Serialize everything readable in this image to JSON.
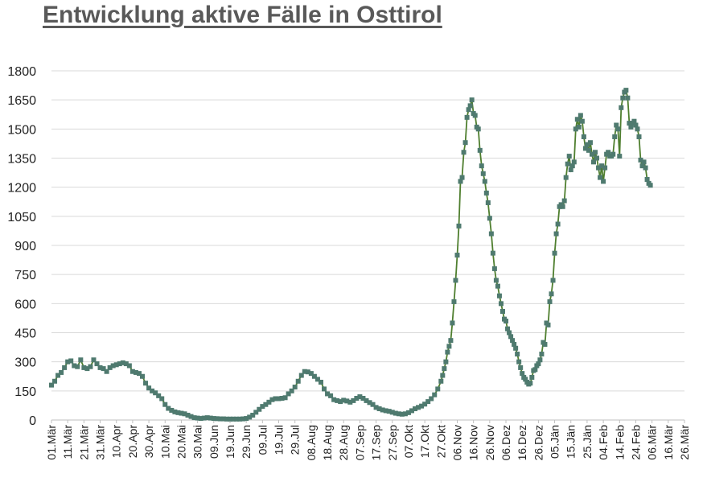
{
  "chart_data": {
    "type": "line",
    "title": "Entwicklung aktive Fälle in Osttirol",
    "xlabel": "",
    "ylabel": "",
    "ylim": [
      0,
      1800
    ],
    "yticks": [
      0,
      150,
      300,
      450,
      600,
      750,
      900,
      1050,
      1200,
      1350,
      1500,
      1650,
      1800
    ],
    "grid": true,
    "legend": "none",
    "line_color": "#4f7f2f",
    "marker_color": "#4f7a6f",
    "x_tick_labels": [
      "01.Mär",
      "11.Mär",
      "21.Mär",
      "31.Mär",
      "10.Apr",
      "20.Apr",
      "30.Apr",
      "10.Mai",
      "20.Mai",
      "30.Mai",
      "09.Jun",
      "19.Jun",
      "29.Jun",
      "09.Jul",
      "19.Jul",
      "29.Jul",
      "08.Aug",
      "18.Aug",
      "28.Aug",
      "07.Sep",
      "17.Sep",
      "27.Sep",
      "07.Okt",
      "17.Okt",
      "27.Okt",
      "06.Nov",
      "16.Nov",
      "26.Nov",
      "06.Dez",
      "16.Dez",
      "26.Dez",
      "05.Jän",
      "15.Jän",
      "25.Jän",
      "04.Feb",
      "14.Feb",
      "24.Feb",
      "06.Mär",
      "16.Mär",
      "26.Mär"
    ],
    "series": [
      {
        "name": "",
        "points": [
          [
            0,
            180
          ],
          [
            2,
            200
          ],
          [
            4,
            230
          ],
          [
            6,
            245
          ],
          [
            8,
            270
          ],
          [
            10,
            300
          ],
          [
            12,
            305
          ],
          [
            14,
            280
          ],
          [
            16,
            275
          ],
          [
            18,
            310
          ],
          [
            20,
            270
          ],
          [
            22,
            265
          ],
          [
            24,
            275
          ],
          [
            26,
            310
          ],
          [
            28,
            290
          ],
          [
            30,
            270
          ],
          [
            32,
            265
          ],
          [
            34,
            250
          ],
          [
            36,
            270
          ],
          [
            38,
            280
          ],
          [
            40,
            285
          ],
          [
            42,
            290
          ],
          [
            44,
            295
          ],
          [
            46,
            290
          ],
          [
            48,
            280
          ],
          [
            50,
            250
          ],
          [
            52,
            245
          ],
          [
            54,
            240
          ],
          [
            56,
            225
          ],
          [
            58,
            190
          ],
          [
            60,
            165
          ],
          [
            62,
            150
          ],
          [
            64,
            140
          ],
          [
            66,
            125
          ],
          [
            68,
            110
          ],
          [
            70,
            80
          ],
          [
            72,
            60
          ],
          [
            74,
            50
          ],
          [
            76,
            42
          ],
          [
            78,
            38
          ],
          [
            80,
            35
          ],
          [
            82,
            32
          ],
          [
            84,
            25
          ],
          [
            86,
            18
          ],
          [
            88,
            12
          ],
          [
            90,
            10
          ],
          [
            92,
            8
          ],
          [
            94,
            10
          ],
          [
            96,
            12
          ],
          [
            98,
            10
          ],
          [
            100,
            8
          ],
          [
            102,
            7
          ],
          [
            104,
            6
          ],
          [
            106,
            6
          ],
          [
            108,
            5
          ],
          [
            110,
            5
          ],
          [
            112,
            5
          ],
          [
            114,
            5
          ],
          [
            116,
            5
          ],
          [
            118,
            6
          ],
          [
            120,
            8
          ],
          [
            122,
            15
          ],
          [
            124,
            25
          ],
          [
            126,
            40
          ],
          [
            128,
            55
          ],
          [
            130,
            70
          ],
          [
            132,
            80
          ],
          [
            134,
            92
          ],
          [
            136,
            105
          ],
          [
            138,
            110
          ],
          [
            140,
            110
          ],
          [
            142,
            112
          ],
          [
            144,
            115
          ],
          [
            146,
            135
          ],
          [
            148,
            150
          ],
          [
            150,
            170
          ],
          [
            152,
            200
          ],
          [
            154,
            230
          ],
          [
            156,
            250
          ],
          [
            158,
            248
          ],
          [
            160,
            240
          ],
          [
            162,
            225
          ],
          [
            164,
            210
          ],
          [
            166,
            195
          ],
          [
            168,
            160
          ],
          [
            170,
            135
          ],
          [
            172,
            125
          ],
          [
            174,
            105
          ],
          [
            176,
            100
          ],
          [
            178,
            95
          ],
          [
            180,
            102
          ],
          [
            182,
            98
          ],
          [
            184,
            92
          ],
          [
            186,
            100
          ],
          [
            188,
            112
          ],
          [
            190,
            120
          ],
          [
            192,
            112
          ],
          [
            194,
            100
          ],
          [
            196,
            90
          ],
          [
            198,
            80
          ],
          [
            200,
            65
          ],
          [
            202,
            58
          ],
          [
            204,
            52
          ],
          [
            206,
            48
          ],
          [
            208,
            45
          ],
          [
            210,
            40
          ],
          [
            212,
            35
          ],
          [
            214,
            32
          ],
          [
            216,
            30
          ],
          [
            218,
            32
          ],
          [
            220,
            38
          ],
          [
            222,
            48
          ],
          [
            224,
            58
          ],
          [
            226,
            65
          ],
          [
            228,
            72
          ],
          [
            230,
            82
          ],
          [
            232,
            95
          ],
          [
            234,
            110
          ],
          [
            236,
            130
          ],
          [
            238,
            160
          ],
          [
            240,
            200
          ],
          [
            241,
            230
          ],
          [
            242,
            265
          ],
          [
            243,
            300
          ],
          [
            244,
            350
          ],
          [
            245,
            380
          ],
          [
            246,
            410
          ],
          [
            247,
            500
          ],
          [
            248,
            610
          ],
          [
            249,
            720
          ],
          [
            250,
            850
          ],
          [
            251,
            1000
          ],
          [
            252,
            1230
          ],
          [
            253,
            1250
          ],
          [
            254,
            1380
          ],
          [
            255,
            1430
          ],
          [
            256,
            1560
          ],
          [
            257,
            1600
          ],
          [
            258,
            1620
          ],
          [
            259,
            1650
          ],
          [
            260,
            1580
          ],
          [
            261,
            1570
          ],
          [
            262,
            1510
          ],
          [
            263,
            1500
          ],
          [
            264,
            1390
          ],
          [
            265,
            1310
          ],
          [
            266,
            1270
          ],
          [
            267,
            1230
          ],
          [
            268,
            1170
          ],
          [
            269,
            1120
          ],
          [
            270,
            1040
          ],
          [
            271,
            960
          ],
          [
            272,
            860
          ],
          [
            273,
            780
          ],
          [
            274,
            720
          ],
          [
            275,
            690
          ],
          [
            276,
            640
          ],
          [
            277,
            600
          ],
          [
            278,
            560
          ],
          [
            279,
            520
          ],
          [
            280,
            510
          ],
          [
            281,
            470
          ],
          [
            282,
            450
          ],
          [
            283,
            430
          ],
          [
            284,
            410
          ],
          [
            285,
            390
          ],
          [
            286,
            370
          ],
          [
            287,
            340
          ],
          [
            288,
            300
          ],
          [
            289,
            270
          ],
          [
            290,
            240
          ],
          [
            291,
            220
          ],
          [
            292,
            210
          ],
          [
            293,
            195
          ],
          [
            294,
            185
          ],
          [
            295,
            190
          ],
          [
            296,
            220
          ],
          [
            297,
            255
          ],
          [
            298,
            260
          ],
          [
            299,
            280
          ],
          [
            300,
            290
          ],
          [
            301,
            310
          ],
          [
            302,
            340
          ],
          [
            303,
            400
          ],
          [
            304,
            390
          ],
          [
            305,
            500
          ],
          [
            306,
            490
          ],
          [
            307,
            610
          ],
          [
            308,
            650
          ],
          [
            309,
            720
          ],
          [
            310,
            860
          ],
          [
            311,
            960
          ],
          [
            312,
            1010
          ],
          [
            313,
            1100
          ],
          [
            314,
            1110
          ],
          [
            315,
            1100
          ],
          [
            316,
            1130
          ],
          [
            317,
            1250
          ],
          [
            318,
            1320
          ],
          [
            319,
            1360
          ],
          [
            320,
            1290
          ],
          [
            321,
            1310
          ],
          [
            322,
            1330
          ],
          [
            323,
            1500
          ],
          [
            324,
            1550
          ],
          [
            325,
            1510
          ],
          [
            326,
            1570
          ],
          [
            327,
            1540
          ],
          [
            328,
            1460
          ],
          [
            329,
            1400
          ],
          [
            330,
            1420
          ],
          [
            331,
            1390
          ],
          [
            332,
            1430
          ],
          [
            333,
            1370
          ],
          [
            334,
            1330
          ],
          [
            335,
            1380
          ],
          [
            336,
            1350
          ],
          [
            337,
            1300
          ],
          [
            338,
            1250
          ],
          [
            339,
            1310
          ],
          [
            340,
            1230
          ],
          [
            341,
            1300
          ],
          [
            342,
            1370
          ],
          [
            343,
            1380
          ],
          [
            344,
            1360
          ],
          [
            345,
            1360
          ],
          [
            346,
            1370
          ],
          [
            347,
            1460
          ],
          [
            348,
            1520
          ],
          [
            349,
            1500
          ],
          [
            350,
            1360
          ],
          [
            351,
            1610
          ],
          [
            352,
            1660
          ],
          [
            353,
            1690
          ],
          [
            354,
            1700
          ],
          [
            355,
            1660
          ],
          [
            356,
            1530
          ],
          [
            357,
            1510
          ],
          [
            358,
            1530
          ],
          [
            359,
            1540
          ],
          [
            360,
            1520
          ],
          [
            361,
            1500
          ],
          [
            362,
            1460
          ],
          [
            363,
            1340
          ],
          [
            364,
            1310
          ],
          [
            365,
            1330
          ],
          [
            366,
            1300
          ],
          [
            367,
            1240
          ],
          [
            368,
            1220
          ],
          [
            369,
            1210
          ]
        ]
      }
    ]
  }
}
